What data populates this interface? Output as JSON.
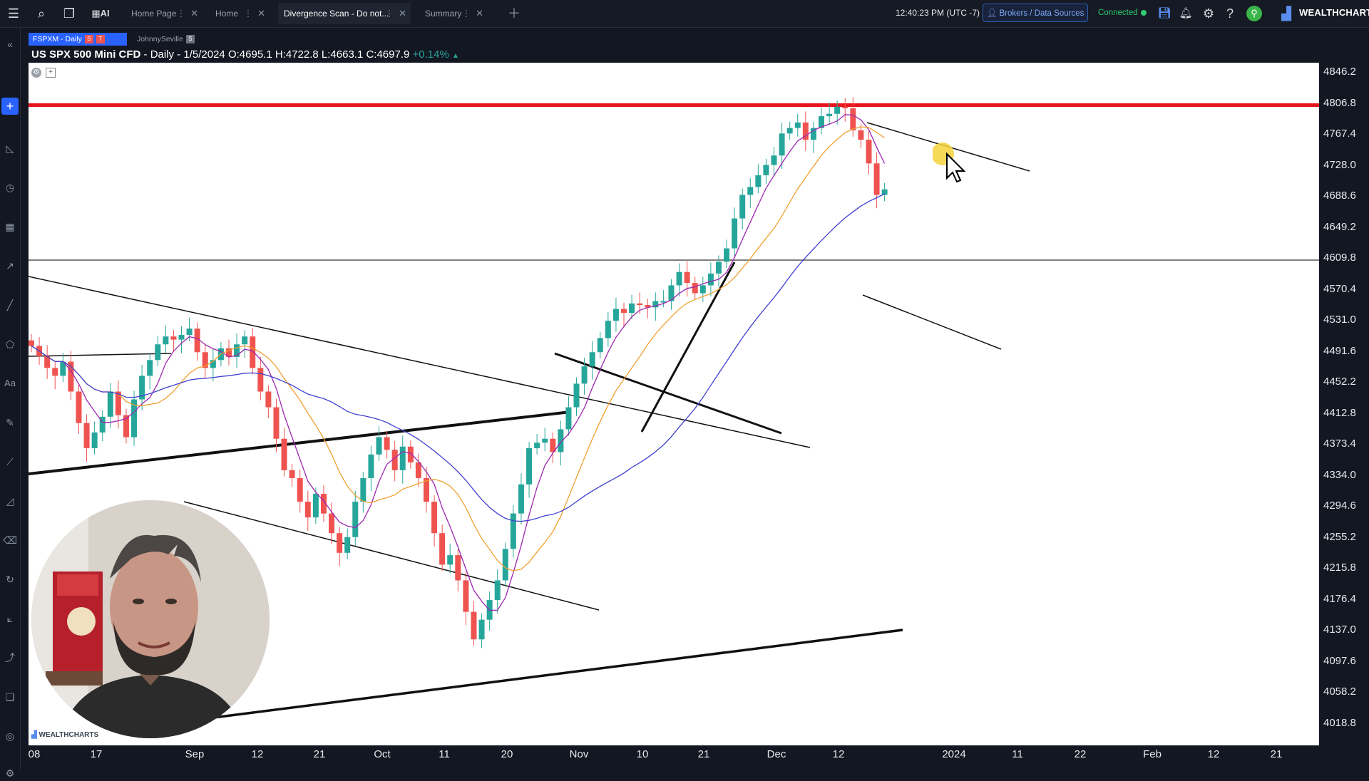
{
  "topbar": {
    "tabs": [
      {
        "label": "Home Page",
        "active": false
      },
      {
        "label": "Home",
        "active": false
      },
      {
        "label": "Divergence Scan - Do not...",
        "active": true
      },
      {
        "label": "Summary",
        "active": false
      }
    ],
    "ai_label": "AI",
    "clock": "12:40:23 PM  (UTC -7)",
    "brokers_button": "Brokers / Data Sources",
    "connection_status": "Connected",
    "brand": "WEALTHCHARTS"
  },
  "symbol_tabs": {
    "active": {
      "label": "FSPXM - Daily",
      "badge_s": "S",
      "badge_t": "T"
    },
    "other": {
      "label": "JohnnySeville",
      "badge": "S"
    }
  },
  "chart_header": {
    "symbol": "US SPX 500 Mini CFD",
    "interval_date": " - Daily - 1/5/2024",
    "open": "O:4695.1",
    "high": "H:4722.8",
    "low": "L:4663.1",
    "close": "C:4697.9",
    "change": "+0.14%"
  },
  "chart_data": {
    "type": "candlestick",
    "price_axis_labels": [
      "4846.2",
      "4806.8",
      "4767.4",
      "4728.0",
      "4688.6",
      "4649.2",
      "4609.8",
      "4570.4",
      "4531.0",
      "4491.6",
      "4452.2",
      "4412.8",
      "4373.4",
      "4334.0",
      "4294.6",
      "4255.2",
      "4215.8",
      "4176.4",
      "4137.0",
      "4097.6",
      "4058.2",
      "4018.8"
    ],
    "time_axis_labels": [
      {
        "label": "08",
        "x": 0
      },
      {
        "label": "17",
        "x": 95
      },
      {
        "label": "Sep",
        "x": 233
      },
      {
        "label": "12",
        "x": 321
      },
      {
        "label": "21",
        "x": 408
      },
      {
        "label": "Oct",
        "x": 496
      },
      {
        "label": "11",
        "x": 583
      },
      {
        "label": "20",
        "x": 671
      },
      {
        "label": "Nov",
        "x": 772
      },
      {
        "label": "10",
        "x": 861
      },
      {
        "label": "21",
        "x": 947
      },
      {
        "label": "Dec",
        "x": 1049
      },
      {
        "label": "12",
        "x": 1136
      },
      {
        "label": "2024",
        "x": 1298
      },
      {
        "label": "11",
        "x": 1387
      },
      {
        "label": "22",
        "x": 1475
      },
      {
        "label": "Feb",
        "x": 1576
      },
      {
        "label": "12",
        "x": 1662
      },
      {
        "label": "21",
        "x": 1750
      }
    ],
    "resistance_level": 4806.8,
    "horizontal_level": 4609.8,
    "colors": {
      "up": "#26a69a",
      "down": "#ef5350",
      "resistance": "#e8141c",
      "ma_fast": "#9c27b0",
      "ma_mid": "#f0a030",
      "ma_slow": "#3f3fd0"
    }
  },
  "webcam": {
    "label": "presenter-webcam"
  },
  "watermark": "WEALTHCHARTS"
}
